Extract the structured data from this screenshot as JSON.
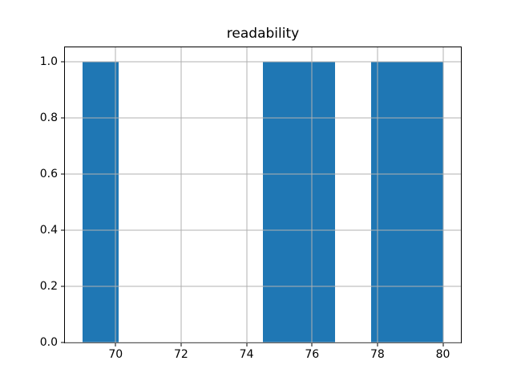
{
  "chart_data": {
    "type": "bar",
    "subtype": "histogram",
    "title": "readability",
    "xlabel": "",
    "ylabel": "",
    "grid": true,
    "legend": false,
    "bar_color": "#1f77b4",
    "grid_color": "#b0b0b0",
    "spine_color": "#000000",
    "text_color": "#000000",
    "xlim": [
      68.45,
      80.55
    ],
    "ylim": [
      0,
      1.05
    ],
    "bin_edges": [
      69.0,
      70.1,
      71.2,
      72.3,
      73.4,
      74.5,
      75.6,
      76.7,
      77.8,
      78.9,
      80.0
    ],
    "counts": [
      1,
      0,
      0,
      0,
      0,
      1,
      1,
      0,
      1,
      1
    ],
    "xticks": [
      {
        "value": 70,
        "label": "70"
      },
      {
        "value": 72,
        "label": "72"
      },
      {
        "value": 74,
        "label": "74"
      },
      {
        "value": 76,
        "label": "76"
      },
      {
        "value": 78,
        "label": "78"
      },
      {
        "value": 80,
        "label": "80"
      }
    ],
    "yticks": [
      {
        "value": 0.0,
        "label": "0.0"
      },
      {
        "value": 0.2,
        "label": "0.2"
      },
      {
        "value": 0.4,
        "label": "0.4"
      },
      {
        "value": 0.6,
        "label": "0.6"
      },
      {
        "value": 0.8,
        "label": "0.8"
      },
      {
        "value": 1.0,
        "label": "1.0"
      }
    ]
  }
}
